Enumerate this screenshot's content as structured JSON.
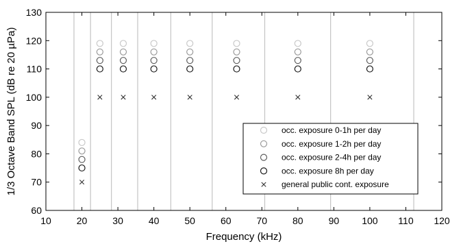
{
  "chart_data": {
    "type": "scatter",
    "xlabel": "Frequency (kHz)",
    "ylabel": "1/3 Octave Band SPL (dB re 20 µPa)",
    "xlim": [
      10,
      120
    ],
    "ylim": [
      60,
      130
    ],
    "xticks": [
      "10",
      "20",
      "30",
      "40",
      "50",
      "60",
      "70",
      "80",
      "90",
      "100",
      "110",
      "120"
    ],
    "yticks": [
      "60",
      "70",
      "80",
      "90",
      "100",
      "110",
      "120",
      "130"
    ],
    "grid": false,
    "band_edges": [
      17.8,
      22.4,
      28.2,
      35.5,
      44.7,
      56.2,
      70.8,
      89.1,
      112.2
    ],
    "legend_position": "bottom-right",
    "series": [
      {
        "name": "occ. exposure 0-1h per day",
        "marker": "circle",
        "color": "#c8c8c8",
        "x": [
          20,
          25,
          31.5,
          40,
          50,
          63,
          80,
          100
        ],
        "y": [
          84,
          119,
          119,
          119,
          119,
          119,
          119,
          119
        ]
      },
      {
        "name": "occ. exposure 1-2h per day",
        "marker": "circle",
        "color": "#9a9a9a",
        "x": [
          20,
          25,
          31.5,
          40,
          50,
          63,
          80,
          100
        ],
        "y": [
          81,
          116,
          116,
          116,
          116,
          116,
          116,
          116
        ]
      },
      {
        "name": "occ. exposure 2-4h per day",
        "marker": "circle",
        "color": "#5e5e5e",
        "x": [
          20,
          25,
          31.5,
          40,
          50,
          63,
          80,
          100
        ],
        "y": [
          78,
          113,
          113,
          113,
          113,
          113,
          113,
          113
        ]
      },
      {
        "name": "occ. exposure 8h per day",
        "marker": "circle",
        "color": "#1a1a1a",
        "x": [
          20,
          25,
          31.5,
          40,
          50,
          63,
          80,
          100
        ],
        "y": [
          75,
          110,
          110,
          110,
          110,
          110,
          110,
          110
        ]
      },
      {
        "name": "general public cont. exposure",
        "marker": "x",
        "color": "#333333",
        "x": [
          20,
          25,
          31.5,
          40,
          50,
          63,
          80,
          100
        ],
        "y": [
          70,
          100,
          100,
          100,
          100,
          100,
          100,
          100
        ]
      }
    ]
  }
}
